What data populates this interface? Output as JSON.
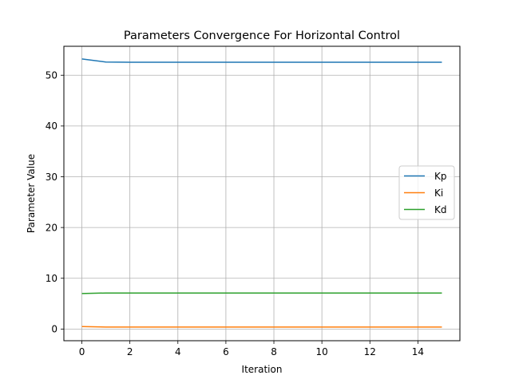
{
  "chart_data": {
    "type": "line",
    "title": "Parameters Convergence For Horizontal Control",
    "xlabel": "Iteration",
    "ylabel": "Parameter Value",
    "xlim": [
      -0.75,
      15.75
    ],
    "ylim": [
      -2.3,
      55.7
    ],
    "xticks": [
      0,
      2,
      4,
      6,
      8,
      10,
      12,
      14
    ],
    "yticks": [
      0,
      10,
      20,
      30,
      40,
      50
    ],
    "grid": true,
    "legend_position": "center-right",
    "x": [
      0,
      1,
      2,
      3,
      4,
      5,
      6,
      7,
      8,
      9,
      10,
      11,
      12,
      13,
      14,
      15
    ],
    "series": [
      {
        "name": "Kp",
        "color": "#1f77b4",
        "values": [
          53.2,
          52.6,
          52.55,
          52.55,
          52.55,
          52.55,
          52.55,
          52.55,
          52.55,
          52.55,
          52.55,
          52.55,
          52.55,
          52.55,
          52.55,
          52.55
        ]
      },
      {
        "name": "Ki",
        "color": "#ff7f0e",
        "values": [
          0.5,
          0.4,
          0.4,
          0.4,
          0.4,
          0.4,
          0.4,
          0.4,
          0.4,
          0.4,
          0.4,
          0.4,
          0.4,
          0.4,
          0.4,
          0.4
        ]
      },
      {
        "name": "Kd",
        "color": "#2ca02c",
        "values": [
          7.0,
          7.1,
          7.1,
          7.1,
          7.1,
          7.1,
          7.1,
          7.1,
          7.1,
          7.1,
          7.1,
          7.1,
          7.1,
          7.1,
          7.1,
          7.1
        ]
      }
    ]
  }
}
